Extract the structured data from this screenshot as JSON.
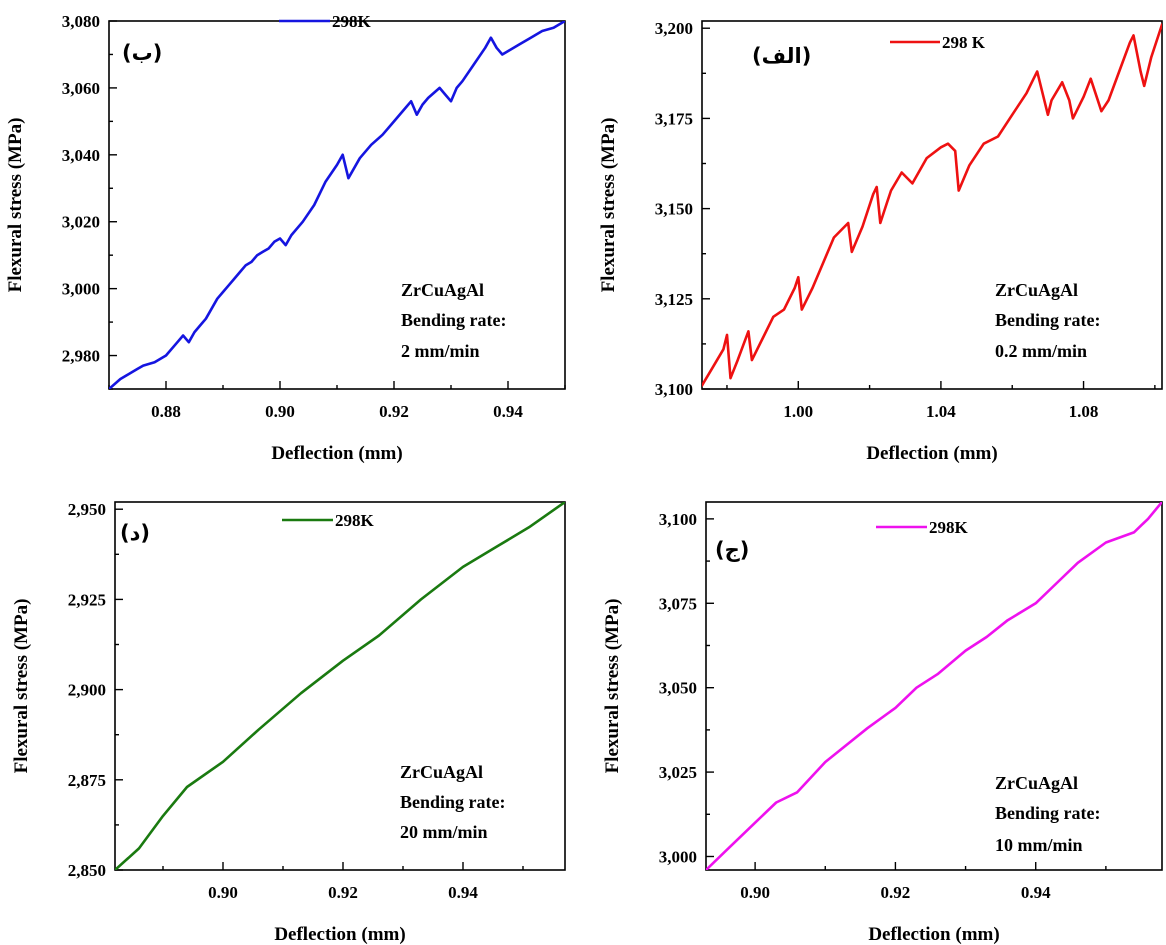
{
  "chart_data": [
    {
      "type": "line",
      "panel_tag": "(ب)",
      "xlabel": "Deflection (mm)",
      "ylabel": "Flexural stress (MPa)",
      "xlim": [
        0.87,
        0.95
      ],
      "ylim": [
        2970,
        3080
      ],
      "xticks": [
        0.88,
        0.9,
        0.92,
        0.94
      ],
      "xtick_labels": [
        "0.88",
        "0.90",
        "0.92",
        "0.94"
      ],
      "yticks": [
        2980,
        3000,
        3020,
        3040,
        3060,
        3080
      ],
      "ytick_labels": [
        "2,980",
        "3,000",
        "3,020",
        "3,040",
        "3,060",
        "3,080"
      ],
      "color": "#1515e0",
      "annotation": [
        "ZrCuAgAl",
        "Bending rate:",
        "2 mm/min"
      ],
      "series": [
        {
          "name": "298K",
          "x": [
            0.87,
            0.872,
            0.873,
            0.874,
            0.875,
            0.876,
            0.878,
            0.88,
            0.882,
            0.883,
            0.884,
            0.885,
            0.886,
            0.887,
            0.888,
            0.889,
            0.89,
            0.891,
            0.892,
            0.893,
            0.894,
            0.895,
            0.896,
            0.897,
            0.898,
            0.899,
            0.9,
            0.901,
            0.902,
            0.904,
            0.906,
            0.908,
            0.91,
            0.911,
            0.912,
            0.913,
            0.914,
            0.916,
            0.918,
            0.92,
            0.922,
            0.923,
            0.924,
            0.925,
            0.926,
            0.928,
            0.929,
            0.93,
            0.931,
            0.932,
            0.934,
            0.936,
            0.937,
            0.938,
            0.939,
            0.94,
            0.942,
            0.944,
            0.946,
            0.948,
            0.95
          ],
          "y": [
            2970,
            2973,
            2974,
            2975,
            2976,
            2977,
            2978,
            2980,
            2984,
            2986,
            2984,
            2987,
            2989,
            2991,
            2994,
            2997,
            2999,
            3001,
            3003,
            3005,
            3007,
            3008,
            3010,
            3011,
            3012,
            3014,
            3015,
            3013,
            3016,
            3020,
            3025,
            3032,
            3037,
            3040,
            3033,
            3036,
            3039,
            3043,
            3046,
            3050,
            3054,
            3056,
            3052,
            3055,
            3057,
            3060,
            3058,
            3056,
            3060,
            3062,
            3067,
            3072,
            3075,
            3072,
            3070,
            3071,
            3073,
            3075,
            3077,
            3078,
            3080
          ]
        }
      ]
    },
    {
      "type": "line",
      "panel_tag": "(الف)",
      "xlabel": "Deflection (mm)",
      "ylabel": "Flexural stress (MPa)",
      "xlim": [
        0.973,
        1.102
      ],
      "ylim": [
        3100,
        3202
      ],
      "xticks": [
        1.0,
        1.04,
        1.08
      ],
      "xtick_labels": [
        "1.00",
        "1.04",
        "1.08"
      ],
      "yticks": [
        3100,
        3125,
        3150,
        3175,
        3200
      ],
      "ytick_labels": [
        "3,100",
        "3,125",
        "3,150",
        "3,175",
        "3,200"
      ],
      "color": "#ee1111",
      "annotation": [
        "ZrCuAgAl",
        "Bending rate:",
        "0.2 mm/min"
      ],
      "series": [
        {
          "name": "298 K",
          "x": [
            0.973,
            0.976,
            0.979,
            0.98,
            0.981,
            0.983,
            0.986,
            0.987,
            0.99,
            0.993,
            0.996,
            0.999,
            1.0,
            1.001,
            1.004,
            1.007,
            1.01,
            1.013,
            1.014,
            1.015,
            1.018,
            1.021,
            1.022,
            1.023,
            1.025,
            1.026,
            1.029,
            1.032,
            1.036,
            1.04,
            1.042,
            1.044,
            1.045,
            1.048,
            1.052,
            1.056,
            1.06,
            1.064,
            1.066,
            1.067,
            1.07,
            1.071,
            1.074,
            1.076,
            1.077,
            1.08,
            1.082,
            1.085,
            1.087,
            1.09,
            1.093,
            1.094,
            1.096,
            1.097,
            1.099,
            1.102
          ],
          "y": [
            3101,
            3106,
            3111,
            3115,
            3103,
            3108,
            3116,
            3108,
            3114,
            3120,
            3122,
            3128,
            3131,
            3122,
            3128,
            3135,
            3142,
            3145,
            3146,
            3138,
            3145,
            3154,
            3156,
            3146,
            3152,
            3155,
            3160,
            3157,
            3164,
            3167,
            3168,
            3166,
            3155,
            3162,
            3168,
            3170,
            3176,
            3182,
            3186,
            3188,
            3176,
            3180,
            3185,
            3180,
            3175,
            3181,
            3186,
            3177,
            3180,
            3188,
            3196,
            3198,
            3188,
            3184,
            3192,
            3201
          ]
        }
      ]
    },
    {
      "type": "line",
      "panel_tag": "(د)",
      "xlabel": "Deflection (mm)",
      "ylabel": "Flexural stress (MPa)",
      "xlim": [
        0.882,
        0.957
      ],
      "ylim": [
        2850,
        2952
      ],
      "xticks": [
        0.9,
        0.92,
        0.94
      ],
      "xtick_labels": [
        "0.90",
        "0.92",
        "0.94"
      ],
      "yticks": [
        2850,
        2875,
        2900,
        2925,
        2950
      ],
      "ytick_labels": [
        "2,850",
        "2,875",
        "2,900",
        "2,925",
        "2,950"
      ],
      "color": "#1a7a10",
      "annotation": [
        "ZrCuAgAl",
        "Bending rate:",
        "20 mm/min"
      ],
      "series": [
        {
          "name": "298K",
          "x": [
            0.882,
            0.886,
            0.89,
            0.894,
            0.9,
            0.906,
            0.913,
            0.92,
            0.926,
            0.933,
            0.94,
            0.946,
            0.951,
            0.957
          ],
          "y": [
            2850,
            2856,
            2865,
            2873,
            2880,
            2889,
            2899,
            2908,
            2915,
            2925,
            2934,
            2940,
            2945,
            2952
          ]
        }
      ]
    },
    {
      "type": "line",
      "panel_tag": "(ج)",
      "xlabel": "Deflection (mm)",
      "ylabel": "Flexural stress (MPa)",
      "xlim": [
        0.893,
        0.958
      ],
      "ylim": [
        2996,
        3105
      ],
      "xticks": [
        0.9,
        0.92,
        0.94
      ],
      "xtick_labels": [
        "0.90",
        "0.92",
        "0.94"
      ],
      "yticks": [
        3000,
        3025,
        3050,
        3075,
        3100
      ],
      "ytick_labels": [
        "3,000",
        "3,025",
        "3,050",
        "3,075",
        "3,100"
      ],
      "color": "#ee11ee",
      "annotation": [
        "ZrCuAgAl",
        "Bending rate:",
        "10 mm/min"
      ],
      "series": [
        {
          "name": "298K",
          "x": [
            0.893,
            0.896,
            0.9,
            0.903,
            0.906,
            0.91,
            0.913,
            0.916,
            0.92,
            0.923,
            0.926,
            0.93,
            0.933,
            0.936,
            0.94,
            0.943,
            0.946,
            0.95,
            0.954,
            0.956,
            0.958
          ],
          "y": [
            2996,
            3002,
            3010,
            3016,
            3019,
            3028,
            3033,
            3038,
            3044,
            3050,
            3054,
            3061,
            3065,
            3070,
            3075,
            3081,
            3087,
            3093,
            3096,
            3100,
            3105
          ]
        }
      ]
    }
  ]
}
